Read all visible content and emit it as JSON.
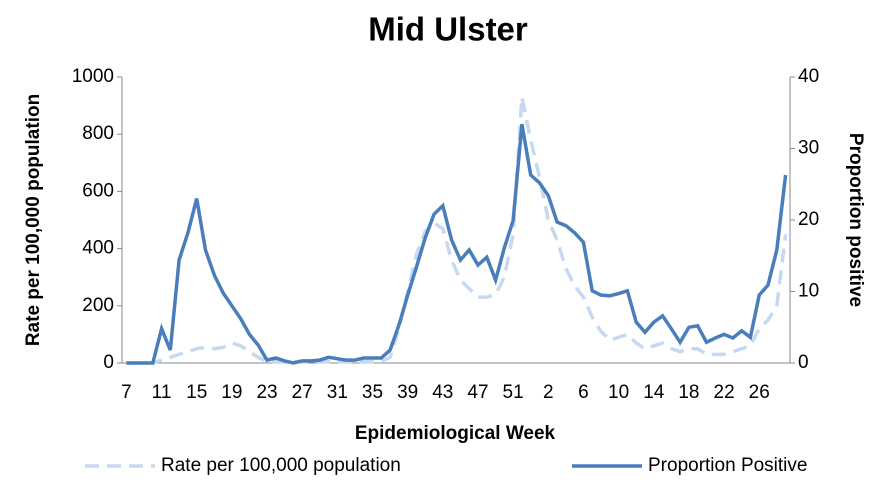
{
  "chart_data": {
    "type": "line",
    "title": "Mid Ulster",
    "x_label": "Epidemiological Week",
    "y_label": "Rate per 100,000 population",
    "y2_label": "Proportion positive",
    "categories": [
      "7",
      null,
      null,
      null,
      "11",
      null,
      null,
      null,
      "15",
      null,
      null,
      null,
      "19",
      null,
      null,
      null,
      "23",
      null,
      null,
      null,
      "27",
      null,
      null,
      null,
      "31",
      null,
      null,
      null,
      "35",
      null,
      null,
      null,
      "39",
      null,
      null,
      null,
      "43",
      null,
      null,
      null,
      "47",
      null,
      null,
      null,
      "51",
      null,
      null,
      null,
      "2",
      null,
      null,
      null,
      "6",
      null,
      null,
      null,
      "10",
      null,
      null,
      null,
      "14",
      null,
      null,
      null,
      "18",
      null,
      null,
      null,
      "22",
      null,
      null,
      null,
      "26",
      null,
      null,
      null
    ],
    "series": [
      {
        "name": "Rate per 100,000 population",
        "color": "#c6d9f1",
        "dashed": true,
        "values": [
          0,
          0,
          0,
          0,
          10,
          20,
          30,
          40,
          50,
          55,
          50,
          55,
          70,
          60,
          40,
          20,
          5,
          5,
          5,
          5,
          5,
          5,
          5,
          5,
          5,
          5,
          5,
          5,
          5,
          5,
          20,
          120,
          250,
          380,
          460,
          490,
          470,
          360,
          290,
          260,
          230,
          230,
          240,
          300,
          450,
          930,
          780,
          650,
          500,
          430,
          330,
          270,
          230,
          160,
          110,
          80,
          90,
          100,
          70,
          50,
          60,
          70,
          50,
          40,
          50,
          50,
          30,
          30,
          30,
          40,
          50,
          60,
          120,
          150,
          200,
          450
        ]
      },
      {
        "name": "Proportion Positive",
        "color": "#4a7ebb",
        "axis": "y2",
        "values": [
          0,
          0,
          0,
          0,
          4.8,
          1.8,
          14.4,
          18.2,
          23,
          15.8,
          12.3,
          9.8,
          8,
          6.2,
          4,
          2.5,
          0.4,
          0.7,
          0.3,
          0,
          0.3,
          0.3,
          0.4,
          0.8,
          0.6,
          0.4,
          0.4,
          0.7,
          0.7,
          0.7,
          1.8,
          5.3,
          9.5,
          13.4,
          17.5,
          20.8,
          22,
          17.2,
          14.4,
          15.8,
          13.7,
          14.8,
          11.6,
          16.1,
          19.9,
          33.4,
          26.3,
          25.2,
          23.4,
          19.7,
          19.2,
          18.2,
          16.9,
          10.1,
          9.5,
          9.4,
          9.7,
          10.1,
          5.7,
          4.3,
          5.7,
          6.6,
          4.8,
          2.9,
          5,
          5.2,
          2.9,
          3.5,
          4,
          3.5,
          4.5,
          3.6,
          9.5,
          10.9,
          15.8,
          26.3
        ]
      }
    ],
    "ylim": [
      0,
      1000
    ],
    "yticks": [
      0,
      200,
      400,
      600,
      800,
      1000
    ],
    "y2lim": [
      0,
      40
    ],
    "y2ticks": [
      0,
      10,
      20,
      30,
      40
    ],
    "legend": "bottom"
  }
}
